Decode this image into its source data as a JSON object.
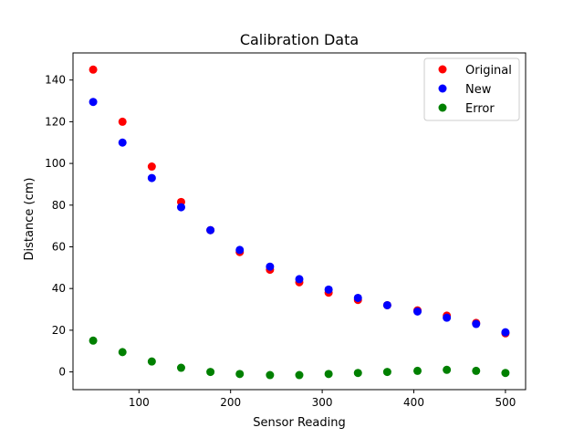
{
  "chart_data": {
    "type": "scatter",
    "title": "Calibration Data",
    "xlabel": "Sensor Reading",
    "ylabel": "Distance (cm)",
    "xlim": [
      28,
      522
    ],
    "ylim": [
      -8.5,
      153
    ],
    "xticks": [
      100,
      200,
      300,
      400,
      500
    ],
    "yticks": [
      0,
      20,
      40,
      60,
      80,
      100,
      120,
      140
    ],
    "grid": false,
    "legend_position": "top-right",
    "x": [
      50,
      82,
      114,
      146,
      178,
      210,
      243,
      275,
      307,
      339,
      371,
      404,
      436,
      468,
      500
    ],
    "series": [
      {
        "name": "Original",
        "color": "#ff0000",
        "values": [
          145,
          120,
          98.5,
          81.5,
          68,
          57.5,
          49,
          43,
          38,
          34.5,
          32,
          29.5,
          27,
          23.5,
          18.5
        ]
      },
      {
        "name": "New",
        "color": "#0000ff",
        "values": [
          129.5,
          110,
          93,
          79,
          68,
          58.5,
          50.5,
          44.5,
          39.5,
          35.5,
          32,
          29,
          26,
          23,
          19
        ]
      },
      {
        "name": "Error",
        "color": "#008000",
        "values": [
          15,
          9.5,
          5,
          2,
          0,
          -1,
          -1.5,
          -1.5,
          -1,
          -0.5,
          0,
          0.5,
          1,
          0.5,
          -0.5
        ]
      }
    ]
  }
}
